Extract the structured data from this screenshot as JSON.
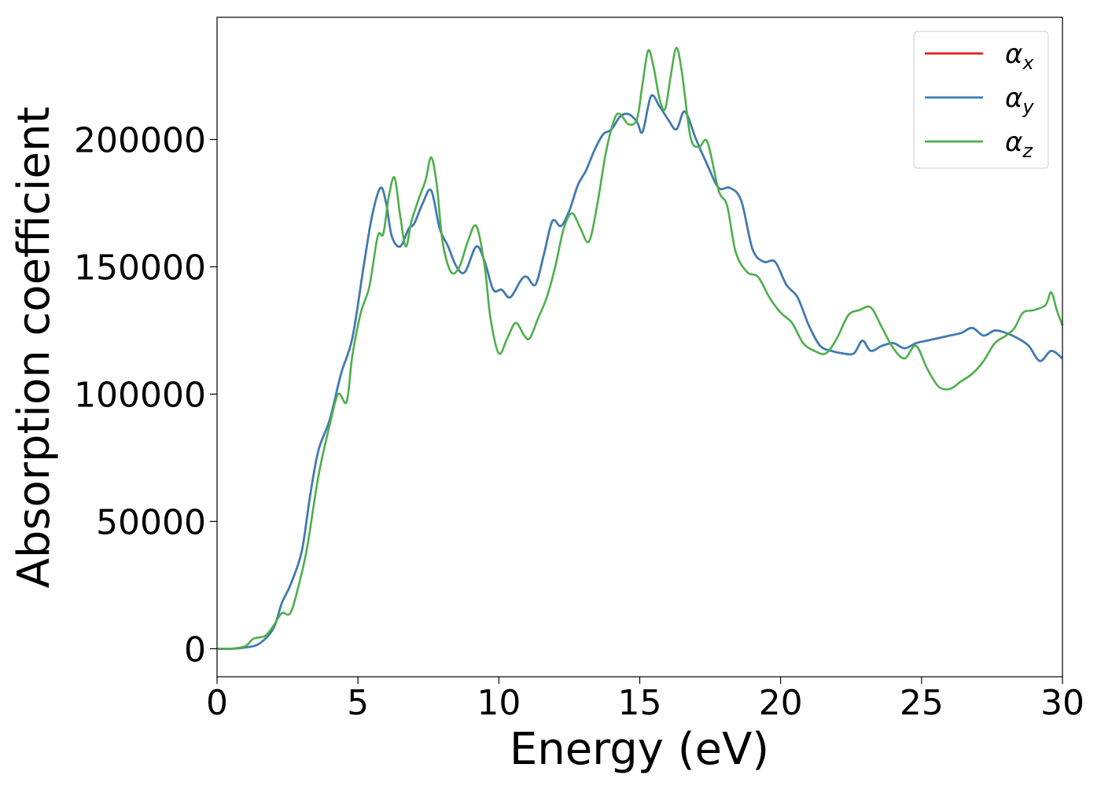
{
  "chart_data": {
    "type": "line",
    "title": "",
    "xlabel": "Energy (eV)",
    "ylabel": "Absorption coefficient",
    "xlim": [
      0,
      30
    ],
    "ylim": [
      -11000,
      248000
    ],
    "xticks": [
      0,
      5,
      10,
      15,
      20,
      25,
      30
    ],
    "yticks": [
      0,
      50000,
      100000,
      150000,
      200000
    ],
    "grid": false,
    "legend_position": "top-right",
    "legend": [
      {
        "symbol": "α",
        "sub": "x",
        "color": "#e41a1c"
      },
      {
        "symbol": "α",
        "sub": "y",
        "color": "#377eb8"
      },
      {
        "symbol": "α",
        "sub": "z",
        "color": "#4daf4a"
      }
    ],
    "series": [
      {
        "name": "αx",
        "color": "#e41a1c",
        "x": [
          0,
          0.5,
          1.0,
          1.5,
          2.0,
          2.3,
          2.6,
          3.0,
          3.3,
          3.6,
          4.0,
          4.4,
          4.8,
          5.2,
          5.5,
          5.8,
          6.0,
          6.2,
          6.5,
          6.8,
          7.0,
          7.3,
          7.6,
          7.9,
          8.2,
          8.5,
          8.8,
          9.2,
          9.5,
          9.8,
          10.1,
          10.4,
          10.8,
          11.0,
          11.3,
          11.6,
          11.9,
          12.2,
          12.5,
          12.8,
          13.1,
          13.4,
          13.7,
          14.0,
          14.3,
          14.6,
          14.9,
          15.1,
          15.4,
          15.7,
          16.0,
          16.3,
          16.6,
          17.0,
          17.4,
          17.8,
          18.2,
          18.6,
          19.0,
          19.4,
          19.8,
          20.2,
          20.6,
          21.0,
          21.4,
          21.8,
          22.2,
          22.6,
          22.9,
          23.2,
          23.6,
          24.0,
          24.4,
          24.8,
          25.2,
          25.6,
          26.0,
          26.4,
          26.8,
          27.2,
          27.6,
          28.0,
          28.4,
          28.8,
          29.2,
          29.6,
          30.0
        ],
        "y": [
          0,
          0,
          500,
          2000,
          8000,
          18000,
          25000,
          38000,
          60000,
          78000,
          90000,
          108000,
          122000,
          150000,
          170000,
          181000,
          175000,
          162000,
          158000,
          165000,
          167000,
          175000,
          180000,
          165000,
          158000,
          150000,
          148000,
          158000,
          152000,
          141000,
          141000,
          138000,
          145000,
          146000,
          143000,
          155000,
          168000,
          166000,
          172000,
          182000,
          188000,
          196000,
          202000,
          204000,
          209000,
          210000,
          207000,
          203000,
          217000,
          213000,
          208000,
          204000,
          211000,
          200000,
          190000,
          181000,
          181000,
          176000,
          157000,
          152000,
          152000,
          143000,
          138000,
          127000,
          119000,
          117000,
          116000,
          116000,
          121000,
          117000,
          119000,
          120000,
          118000,
          120000,
          121000,
          122000,
          123000,
          124000,
          126000,
          123000,
          125000,
          124000,
          122000,
          119000,
          113000,
          117000,
          114000
        ]
      },
      {
        "name": "αy",
        "color": "#377eb8",
        "x": [
          0,
          0.5,
          1.0,
          1.5,
          2.0,
          2.3,
          2.6,
          3.0,
          3.3,
          3.6,
          4.0,
          4.4,
          4.8,
          5.2,
          5.5,
          5.8,
          6.0,
          6.2,
          6.5,
          6.8,
          7.0,
          7.3,
          7.6,
          7.9,
          8.2,
          8.5,
          8.8,
          9.2,
          9.5,
          9.8,
          10.1,
          10.4,
          10.8,
          11.0,
          11.3,
          11.6,
          11.9,
          12.2,
          12.5,
          12.8,
          13.1,
          13.4,
          13.7,
          14.0,
          14.3,
          14.6,
          14.9,
          15.1,
          15.4,
          15.7,
          16.0,
          16.3,
          16.6,
          17.0,
          17.4,
          17.8,
          18.2,
          18.6,
          19.0,
          19.4,
          19.8,
          20.2,
          20.6,
          21.0,
          21.4,
          21.8,
          22.2,
          22.6,
          22.9,
          23.2,
          23.6,
          24.0,
          24.4,
          24.8,
          25.2,
          25.6,
          26.0,
          26.4,
          26.8,
          27.2,
          27.6,
          28.0,
          28.4,
          28.8,
          29.2,
          29.6,
          30.0
        ],
        "y": [
          0,
          0,
          500,
          2000,
          8000,
          18000,
          25000,
          38000,
          60000,
          78000,
          90000,
          108000,
          122000,
          150000,
          170000,
          181000,
          175000,
          162000,
          158000,
          165000,
          167000,
          175000,
          180000,
          165000,
          158000,
          150000,
          148000,
          158000,
          152000,
          141000,
          141000,
          138000,
          145000,
          146000,
          143000,
          155000,
          168000,
          166000,
          172000,
          182000,
          188000,
          196000,
          202000,
          204000,
          209000,
          210000,
          207000,
          203000,
          217000,
          213000,
          208000,
          204000,
          211000,
          200000,
          190000,
          181000,
          181000,
          176000,
          157000,
          152000,
          152000,
          143000,
          138000,
          127000,
          119000,
          117000,
          116000,
          116000,
          121000,
          117000,
          119000,
          120000,
          118000,
          120000,
          121000,
          122000,
          123000,
          124000,
          126000,
          123000,
          125000,
          124000,
          122000,
          119000,
          113000,
          117000,
          114000
        ]
      },
      {
        "name": "αz",
        "color": "#4daf4a",
        "x": [
          0,
          0.5,
          1.0,
          1.3,
          1.7,
          2.0,
          2.3,
          2.6,
          2.9,
          3.2,
          3.6,
          4.0,
          4.3,
          4.6,
          4.8,
          5.1,
          5.4,
          5.7,
          5.9,
          6.1,
          6.3,
          6.5,
          6.7,
          6.9,
          7.2,
          7.4,
          7.6,
          7.8,
          8.0,
          8.3,
          8.6,
          8.9,
          9.2,
          9.5,
          9.7,
          10.0,
          10.3,
          10.6,
          10.9,
          11.1,
          11.4,
          11.7,
          12.0,
          12.3,
          12.6,
          12.9,
          13.2,
          13.5,
          13.8,
          14.1,
          14.3,
          14.6,
          14.9,
          15.1,
          15.3,
          15.5,
          15.7,
          15.9,
          16.1,
          16.3,
          16.5,
          16.8,
          17.1,
          17.4,
          17.8,
          18.1,
          18.4,
          18.8,
          19.2,
          19.6,
          20.0,
          20.4,
          20.8,
          21.2,
          21.6,
          22.0,
          22.4,
          22.8,
          23.2,
          23.6,
          24.0,
          24.4,
          24.8,
          25.2,
          25.6,
          26.0,
          26.4,
          26.8,
          27.2,
          27.6,
          28.0,
          28.3,
          28.6,
          29.0,
          29.4,
          29.6,
          29.8,
          30.0
        ],
        "y": [
          0,
          0,
          1000,
          4000,
          5000,
          9000,
          14000,
          14000,
          25000,
          40000,
          68000,
          88000,
          100000,
          97000,
          115000,
          132000,
          142000,
          162000,
          163000,
          178000,
          185000,
          170000,
          158000,
          168000,
          178000,
          184000,
          193000,
          182000,
          160000,
          148000,
          150000,
          160000,
          166000,
          150000,
          130000,
          116000,
          122000,
          128000,
          123000,
          122000,
          130000,
          138000,
          150000,
          165000,
          171000,
          165000,
          160000,
          175000,
          195000,
          208000,
          210000,
          206000,
          208000,
          222000,
          235000,
          228000,
          216000,
          212000,
          225000,
          236000,
          226000,
          201000,
          197000,
          199000,
          180000,
          174000,
          156000,
          148000,
          146000,
          138000,
          132000,
          128000,
          120000,
          117000,
          116000,
          122000,
          131000,
          133000,
          134000,
          126000,
          118000,
          114000,
          119000,
          110000,
          103000,
          102000,
          105000,
          108000,
          113000,
          120000,
          123000,
          126000,
          132000,
          133000,
          135000,
          140000,
          133000,
          127000
        ]
      }
    ]
  }
}
